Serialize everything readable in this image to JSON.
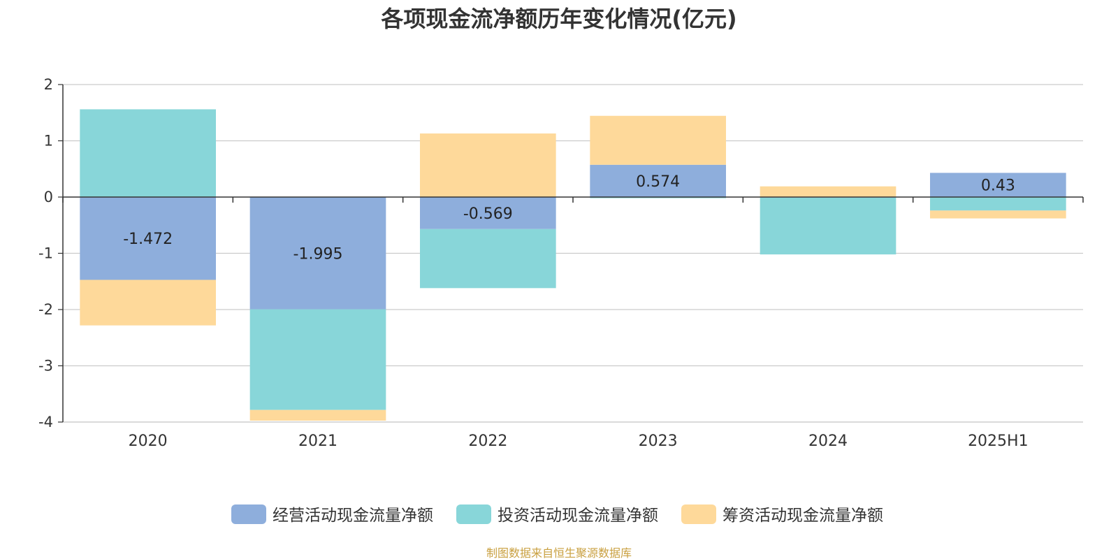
{
  "chart_data": {
    "type": "bar",
    "stacked": true,
    "title": "各项现金流净额历年变化情况(亿元)",
    "xlabel": "",
    "ylabel": "",
    "ylim": [
      -4,
      2
    ],
    "yticks": [
      2,
      1,
      0,
      -1,
      -2,
      -3,
      -4
    ],
    "grid": true,
    "legend_position": "bottom",
    "categories": [
      "2020",
      "2021",
      "2022",
      "2023",
      "2024",
      "2025H1"
    ],
    "series": [
      {
        "name": "经营活动现金流量净额",
        "color": "#8eaedc",
        "values": [
          -1.472,
          -1.995,
          -0.569,
          0.574,
          -0.01,
          0.43
        ],
        "labels": [
          "-1.472",
          "-1.995",
          "-0.569",
          "0.574",
          "",
          "0.43"
        ]
      },
      {
        "name": "投资活动现金流量净额",
        "color": "#88d6d9",
        "values": [
          1.56,
          -1.79,
          -1.05,
          -0.02,
          -1.01,
          -0.24
        ],
        "labels": [
          "",
          "",
          "",
          "",
          "",
          ""
        ]
      },
      {
        "name": "筹资活动现金流量净额",
        "color": "#fed99a",
        "values": [
          -0.81,
          -0.19,
          1.13,
          0.87,
          0.19,
          -0.14
        ],
        "labels": [
          "",
          "",
          "",
          "",
          "",
          ""
        ]
      }
    ]
  },
  "source_note": "制图数据来自恒生聚源数据库"
}
